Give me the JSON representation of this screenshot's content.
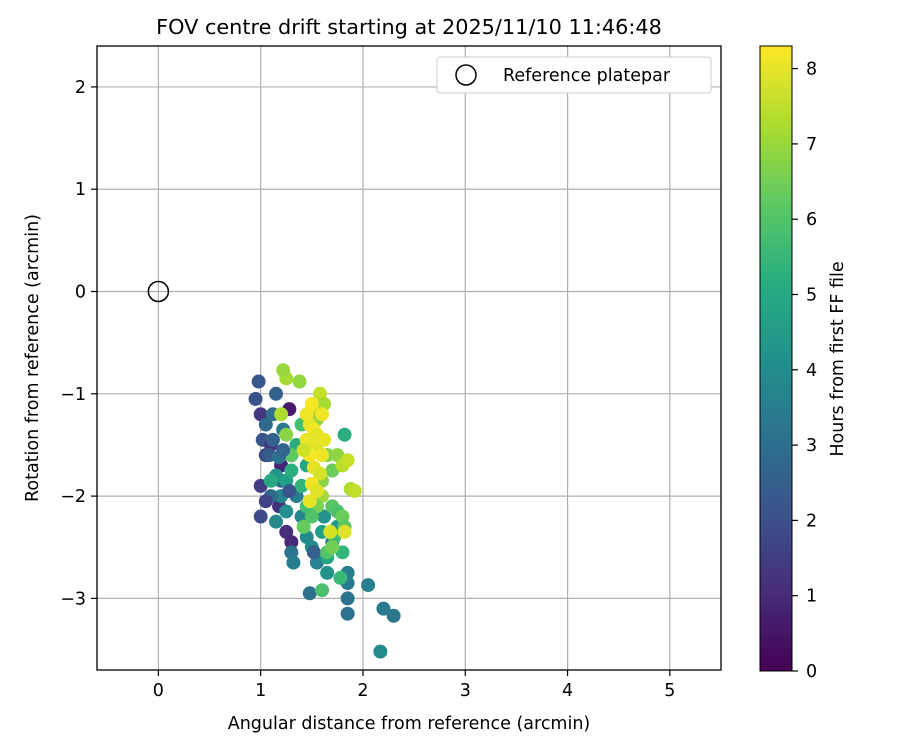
{
  "chart_data": {
    "type": "scatter",
    "title": "FOV centre drift starting at 2025/11/10 11:46:48",
    "xlabel": "Angular distance from reference (arcmin)",
    "ylabel": "Rotation from reference (arcmin)",
    "xlim": [
      -0.6,
      5.5
    ],
    "ylim": [
      -3.7,
      2.4
    ],
    "xticks": [
      0,
      1,
      2,
      3,
      4,
      5
    ],
    "yticks": [
      -3,
      -2,
      -1,
      0,
      1,
      2
    ],
    "grid": true,
    "legend": {
      "label": "Reference platepar",
      "marker": "open-circle",
      "placement": "top-right"
    },
    "reference_point": {
      "x": 0,
      "y": 0
    },
    "colorbar": {
      "label": "Hours from first FF file",
      "min": 0,
      "max": 8.3,
      "ticks": [
        0,
        1,
        2,
        3,
        4,
        5,
        6,
        7,
        8
      ],
      "colormap": "viridis"
    },
    "points": [
      [
        1.0,
        -1.2,
        1.4
      ],
      [
        0.95,
        -1.05,
        2.1
      ],
      [
        0.98,
        -0.88,
        2.3
      ],
      [
        1.02,
        -1.45,
        2.2
      ],
      [
        1.05,
        -1.6,
        1.8
      ],
      [
        1.0,
        -1.9,
        1.5
      ],
      [
        1.0,
        -2.2,
        1.9
      ],
      [
        1.15,
        -1.0,
        2.6
      ],
      [
        1.1,
        -1.5,
        1.3
      ],
      [
        1.2,
        -1.7,
        0.8
      ],
      [
        1.25,
        -2.35,
        1.1
      ],
      [
        1.3,
        -2.45,
        0.9
      ],
      [
        1.18,
        -2.1,
        1.2
      ],
      [
        1.05,
        -1.3,
        2.8
      ],
      [
        1.12,
        -1.2,
        3.0
      ],
      [
        1.22,
        -1.35,
        3.3
      ],
      [
        1.3,
        -1.6,
        2.9
      ],
      [
        1.28,
        -1.15,
        0.6
      ],
      [
        1.2,
        -1.85,
        2.7
      ],
      [
        1.35,
        -2.0,
        3.5
      ],
      [
        1.4,
        -2.2,
        3.8
      ],
      [
        1.3,
        -2.55,
        3.2
      ],
      [
        1.32,
        -2.65,
        3.6
      ],
      [
        1.45,
        -2.4,
        4.0
      ],
      [
        1.5,
        -2.5,
        3.9
      ],
      [
        1.55,
        -2.65,
        3.7
      ],
      [
        1.52,
        -2.55,
        2.5
      ],
      [
        1.6,
        -2.35,
        4.6
      ],
      [
        1.62,
        -2.2,
        4.2
      ],
      [
        1.65,
        -2.6,
        4.8
      ],
      [
        1.7,
        -2.45,
        3.4
      ],
      [
        1.75,
        -2.3,
        4.5
      ],
      [
        1.8,
        -2.55,
        5.5
      ],
      [
        1.85,
        -2.75,
        3.5
      ],
      [
        1.85,
        -3.0,
        3.2
      ],
      [
        1.85,
        -3.15,
        3.1
      ],
      [
        1.85,
        -2.85,
        3.4
      ],
      [
        1.78,
        -2.8,
        5.6
      ],
      [
        1.65,
        -2.75,
        4.2
      ],
      [
        1.48,
        -2.95,
        3.1
      ],
      [
        1.6,
        -2.92,
        5.9
      ],
      [
        2.05,
        -2.87,
        3.6
      ],
      [
        2.2,
        -3.1,
        3.4
      ],
      [
        2.3,
        -3.17,
        3.3
      ],
      [
        2.17,
        -3.52,
        4.0
      ],
      [
        1.15,
        -1.8,
        4.3
      ],
      [
        1.1,
        -1.85,
        5.0
      ],
      [
        1.25,
        -1.85,
        4.7
      ],
      [
        1.3,
        -1.75,
        5.2
      ],
      [
        1.4,
        -1.9,
        5.4
      ],
      [
        1.45,
        -1.7,
        4.9
      ],
      [
        1.35,
        -1.5,
        5.0
      ],
      [
        1.4,
        -1.3,
        5.8
      ],
      [
        1.38,
        -0.88,
        6.9
      ],
      [
        1.25,
        -0.85,
        7.2
      ],
      [
        1.22,
        -0.77,
        7.0
      ],
      [
        1.2,
        -1.2,
        7.3
      ],
      [
        1.25,
        -1.4,
        6.8
      ],
      [
        1.3,
        -1.6,
        6.2
      ],
      [
        1.5,
        -1.15,
        7.5
      ],
      [
        1.55,
        -1.25,
        6.9
      ],
      [
        1.58,
        -1.0,
        7.6
      ],
      [
        1.62,
        -1.1,
        7.2
      ],
      [
        1.6,
        -1.45,
        6.5
      ],
      [
        1.65,
        -1.6,
        6.7
      ],
      [
        1.7,
        -1.75,
        6.4
      ],
      [
        1.75,
        -1.6,
        6.9
      ],
      [
        1.8,
        -1.7,
        7.4
      ],
      [
        1.85,
        -1.65,
        7.6
      ],
      [
        1.88,
        -1.93,
        7.3
      ],
      [
        1.92,
        -1.95,
        7.5
      ],
      [
        1.82,
        -1.4,
        5.2
      ],
      [
        1.6,
        -1.85,
        6.8
      ],
      [
        1.6,
        -2.0,
        7.1
      ],
      [
        1.55,
        -2.1,
        6.6
      ],
      [
        1.5,
        -2.2,
        6.0
      ],
      [
        1.45,
        -2.1,
        5.8
      ],
      [
        1.42,
        -2.3,
        6.3
      ],
      [
        1.7,
        -2.1,
        6.1
      ],
      [
        1.75,
        -2.15,
        5.9
      ],
      [
        1.8,
        -2.2,
        6.4
      ],
      [
        1.82,
        -2.3,
        6.2
      ],
      [
        1.72,
        -2.4,
        5.7
      ],
      [
        1.65,
        -2.55,
        6.0
      ],
      [
        1.7,
        -2.5,
        6.5
      ],
      [
        1.48,
        -1.3,
        8.0
      ],
      [
        1.52,
        -1.35,
        8.2
      ],
      [
        1.5,
        -1.5,
        8.1
      ],
      [
        1.55,
        -1.55,
        7.9
      ],
      [
        1.6,
        -1.6,
        8.1
      ],
      [
        1.48,
        -1.6,
        8.2
      ],
      [
        1.45,
        -1.45,
        8.0
      ],
      [
        1.52,
        -1.72,
        8.0
      ],
      [
        1.58,
        -1.78,
        7.8
      ],
      [
        1.5,
        -1.88,
        8.1
      ],
      [
        1.55,
        -1.95,
        7.9
      ],
      [
        1.48,
        -2.05,
        8.0
      ],
      [
        1.5,
        -1.1,
        8.2
      ],
      [
        1.45,
        -1.2,
        8.1
      ],
      [
        1.55,
        -1.4,
        8.0
      ],
      [
        1.68,
        -2.35,
        7.8
      ],
      [
        1.82,
        -2.35,
        7.9
      ],
      [
        1.6,
        -1.2,
        8.1
      ],
      [
        1.62,
        -1.45,
        8.0
      ],
      [
        1.42,
        -1.55,
        7.7
      ],
      [
        1.2,
        -2.0,
        3.8
      ],
      [
        1.25,
        -2.15,
        4.1
      ],
      [
        1.15,
        -2.25,
        3.9
      ],
      [
        1.1,
        -2.0,
        2.8
      ],
      [
        1.05,
        -2.05,
        1.7
      ],
      [
        1.08,
        -1.6,
        2.4
      ],
      [
        1.12,
        -1.45,
        2.6
      ],
      [
        1.18,
        -1.62,
        3.1
      ],
      [
        1.22,
        -1.55,
        2.7
      ],
      [
        1.28,
        -1.95,
        2.2
      ]
    ]
  }
}
